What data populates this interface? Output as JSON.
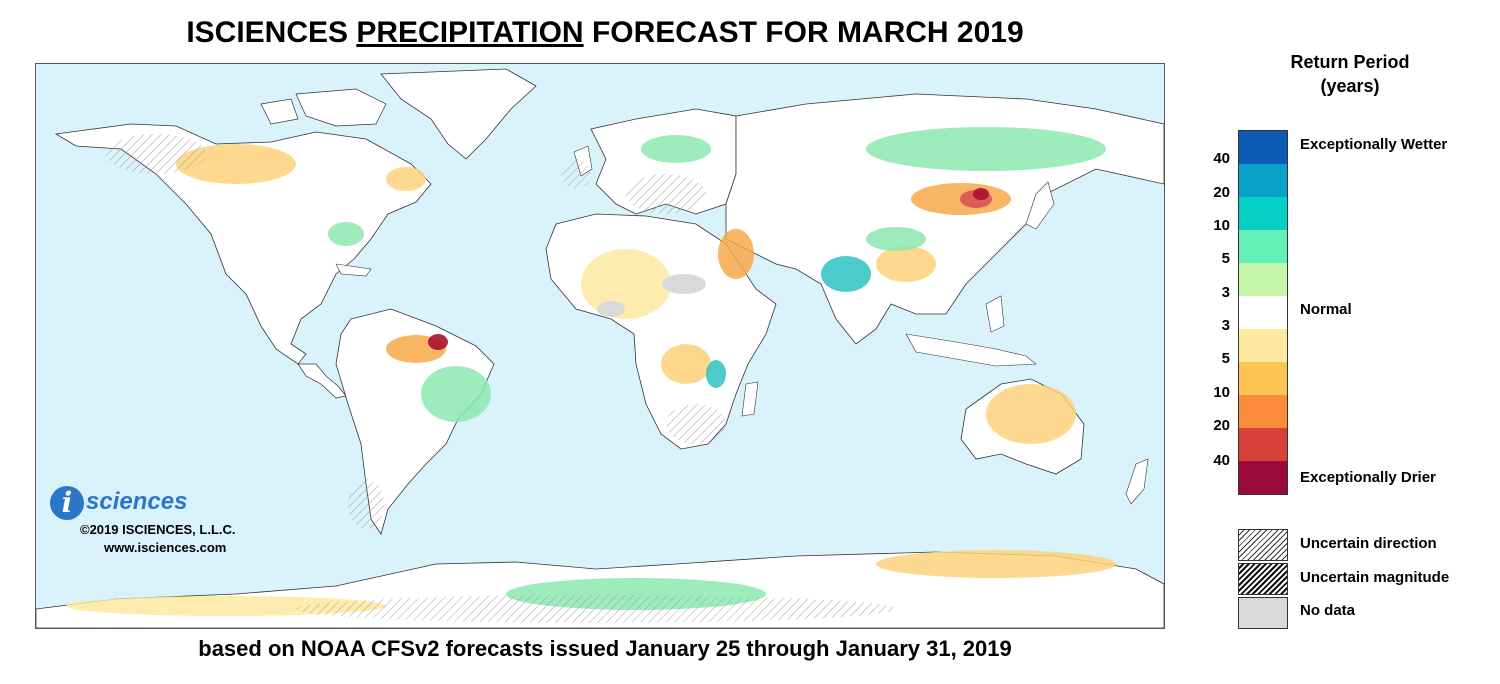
{
  "title": {
    "prefix": "ISCIENCES ",
    "underlined": "PRECIPITATION",
    "suffix": " FORECAST FOR MARCH 2019"
  },
  "subtitle": "based on NOAA CFSv2 forecasts issued January 25 through January 31, 2019",
  "logo": {
    "mark": "i",
    "text": "sciences",
    "copyright": "©2019 ISCIENCES, L.L.C.",
    "website": "www.isciences.com"
  },
  "legend": {
    "title_line1": "Return Period",
    "title_line2": "(years)",
    "swatches": [
      "#0d5bb5",
      "#0aa2c8",
      "#06cfc4",
      "#63f0b8",
      "#c6f7a8",
      "#ffffff",
      "#fde9a0",
      "#fcc553",
      "#fb8c3c",
      "#d8413b",
      "#9a0a3b"
    ],
    "ticks": [
      "40",
      "20",
      "10",
      "5",
      "3",
      "3",
      "5",
      "10",
      "20",
      "40"
    ],
    "wetter_label": "Exceptionally Wetter",
    "normal_label": "Normal",
    "drier_label": "Exceptionally Drier"
  },
  "key": {
    "uncertain_direction": "Uncertain direction",
    "uncertain_magnitude": "Uncertain magnitude",
    "no_data": "No data"
  },
  "colors": {
    "ocean": "#d9f2fc",
    "land": "#ffffff",
    "wet": "#8de8b0",
    "wet_strong": "#2cc2c0",
    "dry": "#fcd27a",
    "dry_strong": "#f7a94a",
    "extreme_dry": "#a8112f",
    "no_data": "#d9d9d9"
  }
}
